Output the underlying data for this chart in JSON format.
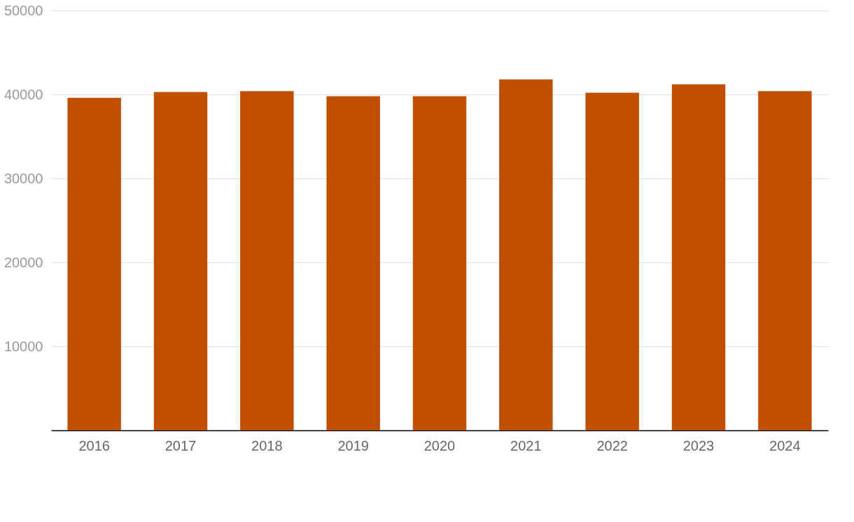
{
  "chart_data": {
    "type": "bar",
    "categories": [
      "2016",
      "2017",
      "2018",
      "2019",
      "2020",
      "2021",
      "2022",
      "2023",
      "2024"
    ],
    "values": [
      39600,
      40300,
      40400,
      39800,
      39800,
      41800,
      40200,
      41200,
      40400
    ],
    "color": "#c05000",
    "ylim": [
      0,
      50000
    ],
    "yticks": [
      10000,
      20000,
      30000,
      40000,
      50000
    ],
    "grid": "y"
  }
}
